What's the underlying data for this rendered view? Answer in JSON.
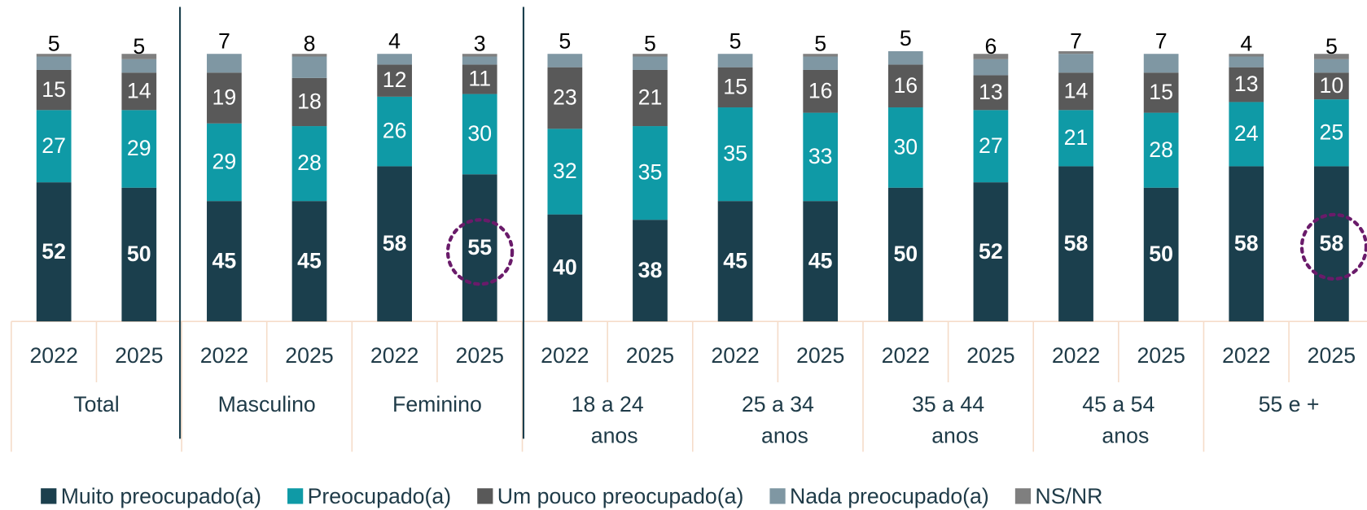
{
  "chart_data": {
    "type": "bar",
    "stacked": true,
    "categories": [
      "2022",
      "2025",
      "2022",
      "2025",
      "2022",
      "2025",
      "2022",
      "2025",
      "2022",
      "2025",
      "2022",
      "2025",
      "2022",
      "2025",
      "2022",
      "2025"
    ],
    "groups": [
      [
        "Total"
      ],
      [
        "Masculino"
      ],
      [
        "Feminino"
      ],
      [
        "18 a 24",
        "anos"
      ],
      [
        "25 a 34",
        "anos"
      ],
      [
        "35 a 44",
        "anos"
      ],
      [
        "45 a 54",
        "anos"
      ],
      [
        "55 e +"
      ]
    ],
    "ylim": [
      0,
      100
    ],
    "series": [
      {
        "name": "Muito preocupado(a)",
        "color": "#1b3f4d",
        "show_labels": true,
        "values": [
          52,
          50,
          45,
          45,
          58,
          55,
          40,
          38,
          45,
          45,
          50,
          52,
          58,
          50,
          58,
          58
        ]
      },
      {
        "name": "Preocupado(a)",
        "color": "#0f9aa6",
        "show_labels": true,
        "values": [
          27,
          29,
          29,
          28,
          26,
          30,
          32,
          35,
          35,
          33,
          30,
          27,
          21,
          28,
          24,
          25
        ]
      },
      {
        "name": "Um pouco preocupado(a)",
        "color": "#595959",
        "show_labels": true,
        "values": [
          15,
          14,
          19,
          18,
          12,
          11,
          23,
          21,
          15,
          16,
          16,
          13,
          14,
          15,
          13,
          10
        ]
      },
      {
        "name": "Nada preocupado(a)",
        "color": "#7f97a3",
        "show_labels": true,
        "values": [
          5,
          5,
          7,
          8,
          4,
          3,
          5,
          5,
          5,
          5,
          5,
          6,
          7,
          7,
          4,
          5
        ]
      },
      {
        "name": "NS/NR",
        "color": "#7f7f7f",
        "show_labels": false,
        "values": [
          1,
          2,
          0,
          1,
          0,
          1,
          0,
          1,
          0,
          1,
          0,
          2,
          1,
          0,
          1,
          2
        ]
      }
    ]
  }
}
